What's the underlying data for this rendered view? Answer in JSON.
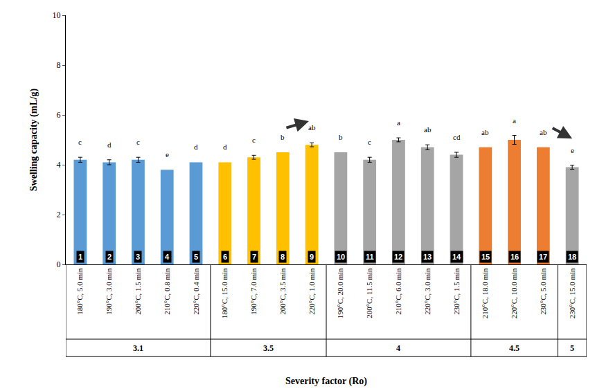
{
  "chart_data": {
    "type": "bar",
    "x_label": "Severity factor (Ro)",
    "y_label": "Swelling capacity (mL/g)",
    "categories": [
      "180°C, 5.0 min",
      "190°C, 3.0 min",
      "200°C, 1.5 min",
      "210°C, 0.8 min",
      "220°C, 0.4 min",
      "180°C, 15.0 min",
      "190°C, 7.0 min",
      "200°C, 3.5 min",
      "220°C, 1.0 min",
      "190°C, 20.0 min",
      "200°C, 11.5 min",
      "210°C, 6.0 min",
      "220°C, 3.0 min",
      "230°C, 1.5 min",
      "210°C, 18.0 min",
      "220°C, 10.0 min",
      "230°C, 5.0 min",
      "230°C, 15.0 min"
    ],
    "groups": [
      "3.1",
      "3.1",
      "3.1",
      "3.1",
      "3.1",
      "3.5",
      "3.5",
      "3.5",
      "3.5",
      "4",
      "4",
      "4",
      "4",
      "4",
      "4.5",
      "4.5",
      "4.5",
      "5"
    ],
    "bar_numbers": [
      "1",
      "2",
      "3",
      "4",
      "5",
      "6",
      "7",
      "8",
      "9",
      "10",
      "11",
      "12",
      "13",
      "14",
      "15",
      "16",
      "17",
      "18"
    ],
    "values": [
      4.2,
      4.1,
      4.2,
      3.8,
      4.1,
      4.1,
      4.3,
      4.5,
      4.8,
      4.5,
      4.2,
      5.0,
      4.7,
      4.4,
      4.7,
      5.0,
      4.7,
      3.9
    ],
    "errors": [
      0.1,
      0.1,
      0.1,
      null,
      null,
      null,
      0.08,
      null,
      0.08,
      null,
      0.1,
      0.08,
      0.1,
      0.1,
      null,
      0.18,
      null,
      0.08
    ],
    "letters": [
      "c",
      "d",
      "c",
      "e",
      "d",
      "d",
      "c",
      "b",
      "ab",
      "b",
      "c",
      "a",
      "ab",
      "cd",
      "ab",
      "a",
      "ab",
      "e"
    ],
    "colors": [
      "#5b9bd5",
      "#5b9bd5",
      "#5b9bd5",
      "#5b9bd5",
      "#5b9bd5",
      "#ffc000",
      "#ffc000",
      "#ffc000",
      "#ffc000",
      "#a5a5a5",
      "#a5a5a5",
      "#a5a5a5",
      "#a5a5a5",
      "#a5a5a5",
      "#ed7d31",
      "#ed7d31",
      "#ed7d31",
      "#a5a5a5"
    ],
    "ylim": [
      0,
      10
    ],
    "yticks": [
      0,
      2,
      4,
      6,
      8,
      10
    ],
    "grid": false
  }
}
